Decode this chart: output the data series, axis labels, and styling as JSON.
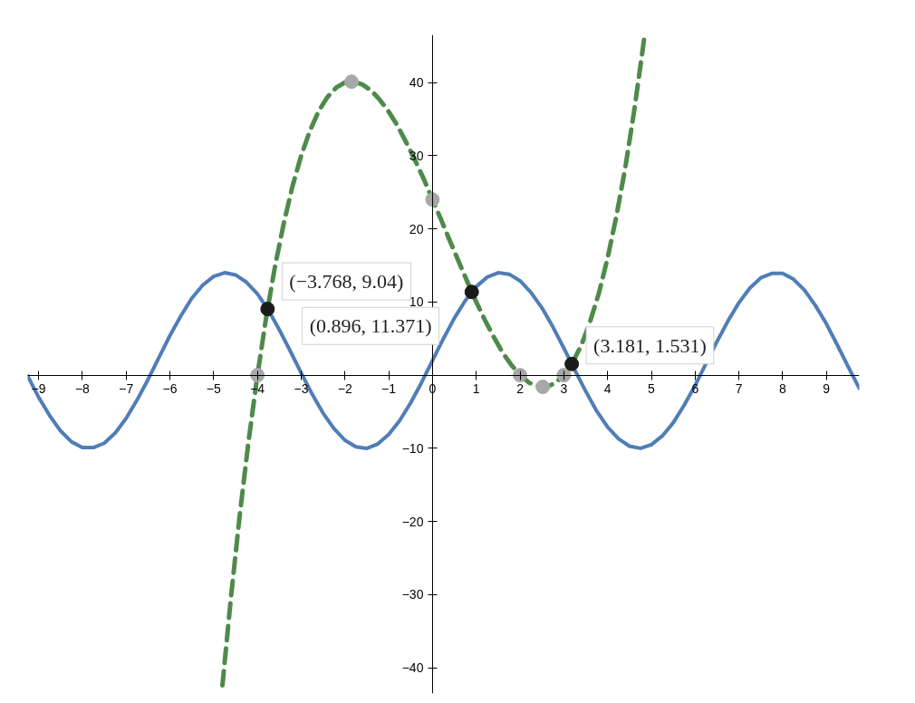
{
  "chart_data": {
    "type": "line",
    "xlim": [
      -9.25,
      9.75
    ],
    "ylim": [
      -43.5,
      46.5
    ],
    "xticks": [
      -9,
      -8,
      -7,
      -6,
      -5,
      -4,
      -3,
      -2,
      -1,
      0,
      1,
      2,
      3,
      4,
      5,
      6,
      7,
      8,
      9
    ],
    "yticks": [
      -40,
      -30,
      -20,
      -10,
      10,
      20,
      30,
      40
    ],
    "grid": false,
    "series": [
      {
        "color": "#4f7db8",
        "line_style": "solid",
        "x": [
          -9.25,
          -9,
          -8.75,
          -8.5,
          -8.25,
          -8,
          -7.75,
          -7.5,
          -7.25,
          -7,
          -6.75,
          -6.5,
          -6.25,
          -6,
          -5.75,
          -5.5,
          -5.25,
          -5,
          -4.75,
          -4.5,
          -4.25,
          -4,
          -3.75,
          -3.5,
          -3.25,
          -3,
          -2.75,
          -2.5,
          -2.25,
          -2,
          -1.75,
          -1.5,
          -1.25,
          -1,
          -0.75,
          -0.5,
          -0.25,
          0,
          0.25,
          0.5,
          0.75,
          1,
          1.25,
          1.5,
          1.75,
          2,
          2.25,
          2.5,
          2.75,
          3,
          3.25,
          3.5,
          3.75,
          4,
          4.25,
          4.5,
          4.75,
          5,
          5.25,
          5.5,
          5.75,
          6,
          6.25,
          6.5,
          6.75,
          7,
          7.25,
          7.5,
          7.75,
          8,
          8.25,
          8.5,
          8.75,
          9,
          9.25,
          9.5,
          9.75
        ],
        "values": [
          -0.1,
          -3.0,
          -5.5,
          -7.6,
          -9.1,
          -9.9,
          -9.9,
          -9.3,
          -7.9,
          -5.9,
          -3.4,
          -0.6,
          2.4,
          5.4,
          8.1,
          10.5,
          12.3,
          13.5,
          14.0,
          13.7,
          12.7,
          11.1,
          8.9,
          6.2,
          3.3,
          0.3,
          -2.6,
          -5.2,
          -7.3,
          -8.9,
          -9.8,
          -10.0,
          -9.4,
          -8.1,
          -6.2,
          -3.8,
          -1.0,
          2.0,
          5.0,
          7.8,
          10.2,
          12.1,
          13.4,
          14.0,
          13.8,
          12.9,
          11.3,
          9.2,
          6.6,
          3.7,
          0.7,
          -2.2,
          -4.9,
          -7.1,
          -8.7,
          -9.7,
          -10.0,
          -9.5,
          -8.3,
          -6.5,
          -4.1,
          -1.4,
          1.6,
          4.6,
          7.4,
          9.9,
          11.9,
          13.3,
          13.9,
          13.9,
          13.1,
          11.6,
          9.5,
          7.0,
          4.1,
          1.1,
          -1.8
        ]
      },
      {
        "color": "#4e8a4a",
        "line_style": "dashed",
        "x": [
          -4.8,
          -4.6,
          -4.4,
          -4.2,
          -4,
          -3.8,
          -3.6,
          -3.4,
          -3.2,
          -3,
          -2.8,
          -2.6,
          -2.4,
          -2.2,
          -2,
          -1.8,
          -1.6,
          -1.4,
          -1.2,
          -1,
          -0.8,
          -0.6,
          -0.4,
          -0.2,
          0,
          0.2,
          0.4,
          0.6,
          0.8,
          1,
          1.2,
          1.4,
          1.6,
          1.8,
          2,
          2.2,
          2.4,
          2.6,
          2.8,
          3,
          3.2,
          3.4,
          3.6,
          3.8,
          4,
          4.2,
          4.4,
          4.6,
          4.8,
          4.84
        ],
        "values": [
          -42.4,
          -30.1,
          -18.9,
          -8.9,
          0,
          7.9,
          14.8,
          20.7,
          25.8,
          30,
          33.4,
          36.1,
          38.0,
          39.3,
          40,
          40.1,
          39.7,
          38.9,
          37.6,
          36,
          34.1,
          31.8,
          29.4,
          26.8,
          24,
          21.2,
          18.3,
          15.5,
          12.7,
          10,
          7.5,
          5.2,
          3.1,
          1.4,
          0,
          -1.0,
          -1.5,
          -1.6,
          -1.1,
          0,
          1.7,
          4.1,
          7.3,
          11.2,
          16,
          21.7,
          28.2,
          35.8,
          44.4,
          46.2
        ]
      },
      {
        "type": "scatter",
        "color": "#a8a8a8",
        "marker": "circle",
        "x": [
          -4,
          -1.85,
          0,
          2,
          2.52,
          3
        ],
        "values": [
          0,
          40.1,
          24,
          0,
          -1.6,
          0
        ]
      },
      {
        "type": "scatter",
        "color": "#1a1a1a",
        "marker": "circle",
        "x": [
          -3.768,
          0.896,
          3.181
        ],
        "values": [
          9.04,
          11.371,
          1.531
        ]
      }
    ],
    "annotations": [
      {
        "text": "(−3.768, 9.04)",
        "x": -3.768,
        "y": 9.04
      },
      {
        "text": "(0.896, 11.371)",
        "x": 0.896,
        "y": 11.371
      },
      {
        "text": "(3.181, 1.531)",
        "x": 3.181,
        "y": 1.531
      }
    ]
  }
}
